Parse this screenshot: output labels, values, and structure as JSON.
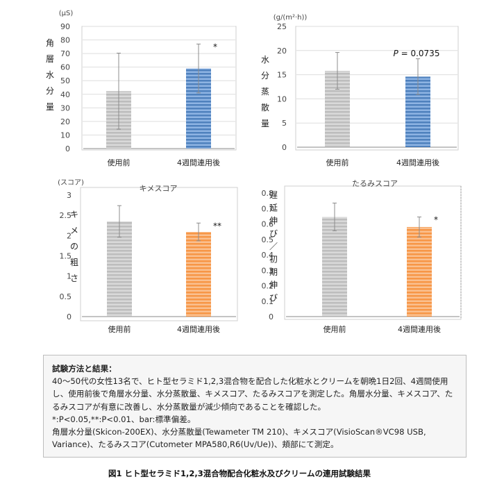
{
  "chart_data": [
    {
      "type": "bar",
      "title": "",
      "unit": "(μS)",
      "ylabel": "角層水分量",
      "categories": [
        "使用前",
        "4週間連用後"
      ],
      "values": [
        42.3,
        59.0
      ],
      "errors": [
        28.0,
        18.0
      ],
      "ylim": [
        0,
        90
      ],
      "yticks": [
        0,
        10,
        20,
        30,
        40,
        50,
        60,
        70,
        80,
        90
      ],
      "ytick_labels": [
        "0",
        "10",
        "20",
        "30",
        "40",
        "50",
        "60",
        "70",
        "80",
        "90"
      ],
      "annotations": [
        "",
        "*"
      ],
      "bar_colors": [
        "#bdbdbd",
        "#4f81bd"
      ],
      "stripe_colors": [
        "#d9d9d9",
        "#8eb4e3"
      ],
      "grid": true
    },
    {
      "type": "bar",
      "title": "",
      "unit": "(g/(m²·h))",
      "ylabel": "水分蒸散量",
      "categories": [
        "使用前",
        "4週間連用後"
      ],
      "values": [
        15.8,
        14.6
      ],
      "errors": [
        3.8,
        3.7
      ],
      "ylim": [
        0,
        25
      ],
      "yticks": [
        0,
        5,
        10,
        15,
        20,
        25
      ],
      "ytick_labels": [
        "0",
        "5",
        "10",
        "15",
        "20",
        "25"
      ],
      "annotations": [
        "",
        ""
      ],
      "note_label": "P",
      "note_value": "= 0.0735",
      "bar_colors": [
        "#bdbdbd",
        "#4f81bd"
      ],
      "stripe_colors": [
        "#d9d9d9",
        "#8eb4e3"
      ],
      "grid": true
    },
    {
      "type": "bar",
      "title": "キメスコア",
      "unit": "(スコア)",
      "ylabel": "キメの粗さ",
      "categories": [
        "使用前",
        "4週間連用後"
      ],
      "values": [
        2.35,
        2.09
      ],
      "errors": [
        0.39,
        0.22
      ],
      "ylim": [
        0,
        3
      ],
      "yticks": [
        0,
        0.5,
        1,
        1.5,
        2,
        2.5,
        3
      ],
      "ytick_labels": [
        "0",
        "0.5",
        "1",
        "1.5",
        "2",
        "2.5",
        "3"
      ],
      "annotations": [
        "",
        "**"
      ],
      "bar_colors": [
        "#bdbdbd",
        "#f79646"
      ],
      "stripe_colors": [
        "#d9d9d9",
        "#fac090"
      ],
      "grid": false
    },
    {
      "type": "bar",
      "title": "たるみスコア",
      "unit": "",
      "ylabel": "遅延伸び/初期伸び",
      "categories": [
        "使用前",
        "4週間連用後"
      ],
      "values": [
        0.645,
        0.58
      ],
      "errors": [
        0.09,
        0.065
      ],
      "ylim": [
        0,
        0.8
      ],
      "yticks": [
        0,
        0.1,
        0.2,
        0.3,
        0.4,
        0.5,
        0.6,
        0.7,
        0.8
      ],
      "ytick_labels": [
        "0",
        "0.1",
        "0.2",
        "0.3",
        "0.4",
        "0.5",
        "0.6",
        "0.7",
        "0.8"
      ],
      "annotations": [
        "",
        "*"
      ],
      "bar_colors": [
        "#bdbdbd",
        "#f79646"
      ],
      "stripe_colors": [
        "#d9d9d9",
        "#fac090"
      ],
      "grid": false
    }
  ],
  "method": {
    "title": "試験方法と結果：",
    "body": "40～50代の女性13名で、ヒト型セラミド1,2,3混合物を配合した化粧水とクリームを朝晩1日2回、4週間使用し、使用前後で角層水分量、水分蒸散量、キメスコア、たるみスコアを測定した。角層水分量、キメスコア、たるみスコアが有意に改善し、水分蒸散量が減少傾向であることを確認した。",
    "stats": "*:P<0.05,**:P<0.01、bar:標準偏差。",
    "instruments": "角層水分量(Skicon-200EX)、水分蒸散量(Tewameter TM 210)、キメスコア(VisioScan®VC98 USB, Variance)、たるみスコア(Cutometer MPA580,R6(Uv/Ue))、頬部にて測定。"
  },
  "caption": "図1 ヒト型セラミド1,2,3混合物配合化粧水及びクリームの連用試験結果"
}
